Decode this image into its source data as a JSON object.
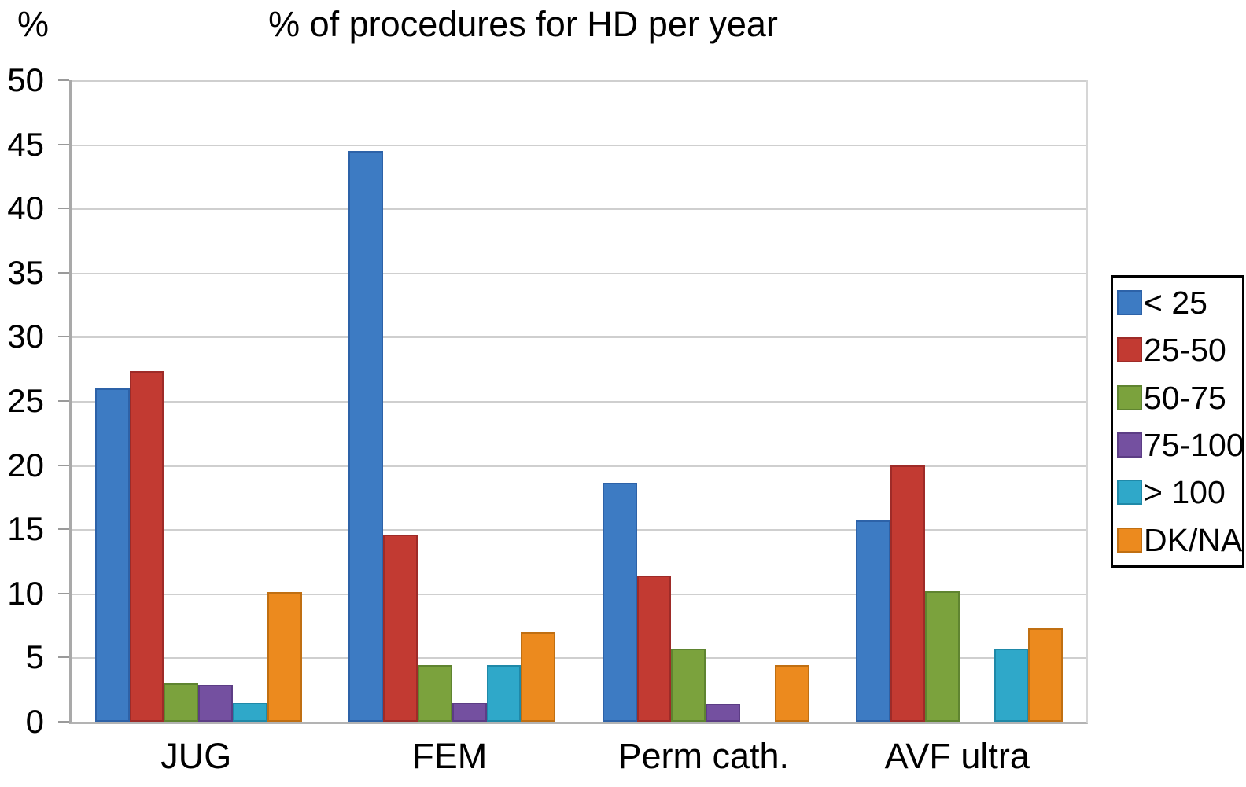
{
  "chart_data": {
    "type": "bar",
    "title": "% of procedures for HD per year",
    "y_axis_label": "%",
    "categories": [
      "JUG",
      "FEM",
      "Perm cath.",
      "AVF ultra"
    ],
    "series": [
      {
        "name": "< 25",
        "color": "#3d7bc3",
        "border_color": "#2d62a8",
        "values": [
          26.0,
          44.5,
          18.6,
          15.7
        ]
      },
      {
        "name": "25-50",
        "color": "#c23a32",
        "border_color": "#9e2b28",
        "values": [
          27.3,
          14.6,
          11.4,
          20.0
        ]
      },
      {
        "name": "50-75",
        "color": "#7ba23d",
        "border_color": "#5f8430",
        "values": [
          3.0,
          4.4,
          5.7,
          10.2
        ]
      },
      {
        "name": "75-100",
        "color": "#7450a0",
        "border_color": "#5c3d85",
        "values": [
          2.9,
          1.5,
          1.4,
          0
        ]
      },
      {
        "name": "> 100",
        "color": "#2fa8c9",
        "border_color": "#1f89a8",
        "values": [
          1.5,
          4.4,
          0,
          5.7
        ]
      },
      {
        "name": "DK/NA",
        "color": "#ec8a1e",
        "border_color": "#c06f12",
        "values": [
          10.1,
          7.0,
          4.4,
          7.3
        ]
      }
    ],
    "ylim": [
      0,
      50
    ],
    "ytick_step": 5,
    "yticks": [
      "0",
      "5",
      "10",
      "15",
      "20",
      "25",
      "30",
      "35",
      "40",
      "45",
      "50"
    ],
    "grid": true,
    "legend_position": "right",
    "axis_colors": {
      "gridline": "#cfcfcf",
      "axis_line": "#a9a9a9",
      "tick": "#9a9a9a"
    },
    "text_color": "#000000",
    "background": "#ffffff"
  }
}
